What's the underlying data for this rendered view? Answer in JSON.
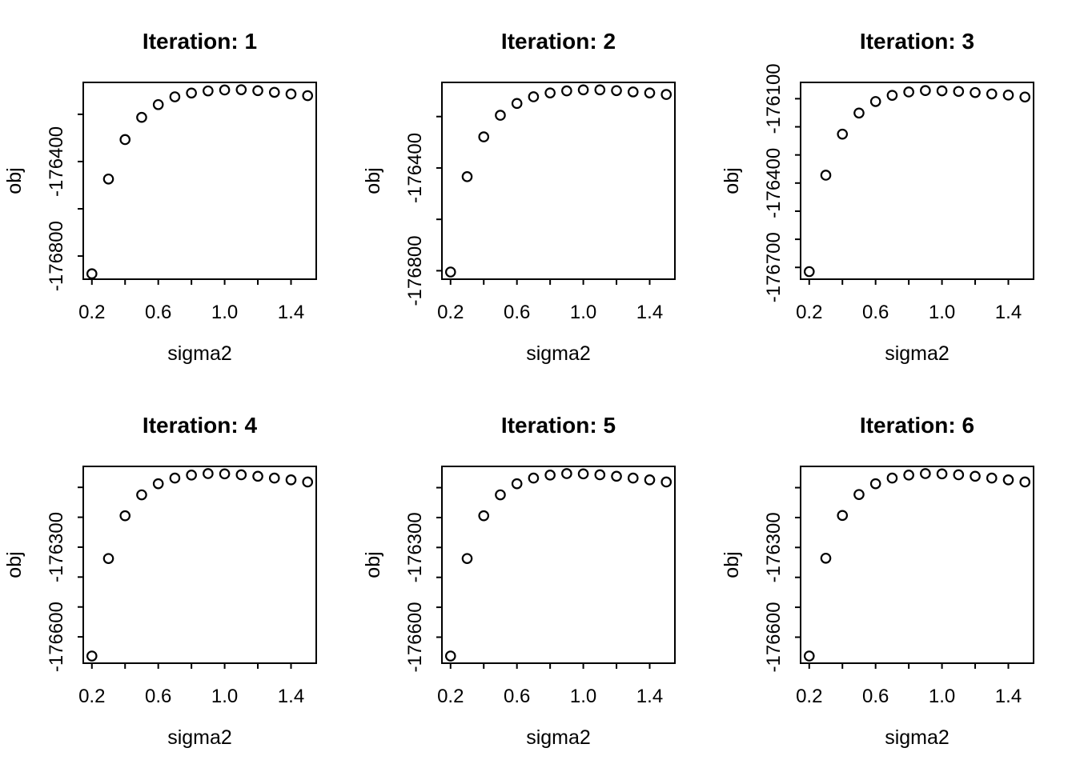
{
  "figure": {
    "background": "#ffffff",
    "foreground": "#000000",
    "layout": "2x3 grid of scatter panels"
  },
  "chart_data": [
    {
      "type": "scatter",
      "title": "Iteration: 1",
      "xlabel": "sigma2",
      "ylabel": "obj",
      "marker": "open-circle",
      "point_color": "#000000",
      "grid": false,
      "legend": null,
      "x": [
        0.2,
        0.3,
        0.4,
        0.5,
        0.6,
        0.7,
        0.8,
        0.9,
        1.0,
        1.1,
        1.2,
        1.3,
        1.4,
        1.5
      ],
      "y": [
        -176875,
        -176474,
        -176307,
        -176213,
        -176159,
        -176126,
        -176110,
        -176101,
        -176097,
        -176096,
        -176100,
        -176107,
        -176114,
        -176121
      ],
      "xlim": [
        0.148,
        1.552
      ],
      "ylim": [
        -176898,
        -176065
      ],
      "x_ticks": [
        0.2,
        0.4,
        0.6,
        0.8,
        1.0,
        1.2,
        1.4
      ],
      "x_tick_labels": [
        "0.2",
        "",
        "0.6",
        "",
        "1.0",
        "",
        "1.4"
      ],
      "y_ticks": [
        -176200,
        -176400,
        -176600,
        -176800
      ],
      "y_tick_labels": [
        "",
        "-176400",
        "",
        "-176800"
      ]
    },
    {
      "type": "scatter",
      "title": "Iteration: 2",
      "xlabel": "sigma2",
      "ylabel": "obj",
      "marker": "open-circle",
      "point_color": "#000000",
      "grid": false,
      "legend": null,
      "x": [
        0.2,
        0.3,
        0.4,
        0.5,
        0.6,
        0.7,
        0.8,
        0.9,
        1.0,
        1.1,
        1.2,
        1.3,
        1.4,
        1.5
      ],
      "y": [
        -176805,
        -176434,
        -176279,
        -176195,
        -176149,
        -176123,
        -176108,
        -176100,
        -176096,
        -176096,
        -176099,
        -176104,
        -176108,
        -176114
      ],
      "xlim": [
        0.148,
        1.552
      ],
      "ylim": [
        -176833,
        -176067
      ],
      "x_ticks": [
        0.2,
        0.4,
        0.6,
        0.8,
        1.0,
        1.2,
        1.4
      ],
      "x_tick_labels": [
        "0.2",
        "",
        "0.6",
        "",
        "1.0",
        "",
        "1.4"
      ],
      "y_ticks": [
        -176200,
        -176400,
        -176600,
        -176800
      ],
      "y_tick_labels": [
        "",
        "-176400",
        "",
        "-176800"
      ]
    },
    {
      "type": "scatter",
      "title": "Iteration: 3",
      "xlabel": "sigma2",
      "ylabel": "obj",
      "marker": "open-circle",
      "point_color": "#000000",
      "grid": false,
      "legend": null,
      "x": [
        0.2,
        0.3,
        0.4,
        0.5,
        0.6,
        0.7,
        0.8,
        0.9,
        1.0,
        1.1,
        1.2,
        1.3,
        1.4,
        1.5
      ],
      "y": [
        -176715,
        -176372,
        -176226,
        -176151,
        -176110,
        -176088,
        -176076,
        -176071,
        -176072,
        -176074,
        -176078,
        -176083,
        -176087,
        -176094
      ],
      "xlim": [
        0.148,
        1.552
      ],
      "ylim": [
        -176742,
        -176042
      ],
      "x_ticks": [
        0.2,
        0.4,
        0.6,
        0.8,
        1.0,
        1.2,
        1.4
      ],
      "x_tick_labels": [
        "0.2",
        "",
        "0.6",
        "",
        "1.0",
        "",
        "1.4"
      ],
      "y_ticks": [
        -176100,
        -176200,
        -176300,
        -176400,
        -176500,
        -176600,
        -176700
      ],
      "y_tick_labels": [
        "-176100",
        "",
        "",
        "-176400",
        "",
        "",
        "-176700"
      ]
    },
    {
      "type": "scatter",
      "title": "Iteration: 4",
      "xlabel": "sigma2",
      "ylabel": "obj",
      "marker": "open-circle",
      "point_color": "#000000",
      "grid": false,
      "legend": null,
      "x": [
        0.2,
        0.3,
        0.4,
        0.5,
        0.6,
        0.7,
        0.8,
        0.9,
        1.0,
        1.1,
        1.2,
        1.3,
        1.4,
        1.5
      ],
      "y": [
        -176664,
        -176338,
        -176195,
        -176125,
        -176088,
        -176069,
        -176059,
        -176054,
        -176055,
        -176058,
        -176063,
        -176069,
        -176075,
        -176082
      ],
      "xlim": [
        0.148,
        1.552
      ],
      "ylim": [
        -176688,
        -176030
      ],
      "x_ticks": [
        0.2,
        0.4,
        0.6,
        0.8,
        1.0,
        1.2,
        1.4
      ],
      "x_tick_labels": [
        "0.2",
        "",
        "0.6",
        "",
        "1.0",
        "",
        "1.4"
      ],
      "y_ticks": [
        -176100,
        -176200,
        -176300,
        -176400,
        -176500,
        -176600
      ],
      "y_tick_labels": [
        "",
        "",
        "-176300",
        "",
        "",
        "-176600"
      ]
    },
    {
      "type": "scatter",
      "title": "Iteration: 5",
      "xlabel": "sigma2",
      "ylabel": "obj",
      "marker": "open-circle",
      "point_color": "#000000",
      "grid": false,
      "legend": null,
      "x": [
        0.2,
        0.3,
        0.4,
        0.5,
        0.6,
        0.7,
        0.8,
        0.9,
        1.0,
        1.1,
        1.2,
        1.3,
        1.4,
        1.5
      ],
      "y": [
        -176663,
        -176337,
        -176194,
        -176124,
        -176087,
        -176068,
        -176058,
        -176053,
        -176054,
        -176057,
        -176062,
        -176068,
        -176074,
        -176081
      ],
      "xlim": [
        0.148,
        1.552
      ],
      "ylim": [
        -176687,
        -176029
      ],
      "x_ticks": [
        0.2,
        0.4,
        0.6,
        0.8,
        1.0,
        1.2,
        1.4
      ],
      "x_tick_labels": [
        "0.2",
        "",
        "0.6",
        "",
        "1.0",
        "",
        "1.4"
      ],
      "y_ticks": [
        -176100,
        -176200,
        -176300,
        -176400,
        -176500,
        -176600
      ],
      "y_tick_labels": [
        "",
        "",
        "-176300",
        "",
        "",
        "-176600"
      ]
    },
    {
      "type": "scatter",
      "title": "Iteration: 6",
      "xlabel": "sigma2",
      "ylabel": "obj",
      "marker": "open-circle",
      "point_color": "#000000",
      "grid": false,
      "legend": null,
      "x": [
        0.2,
        0.3,
        0.4,
        0.5,
        0.6,
        0.7,
        0.8,
        0.9,
        1.0,
        1.1,
        1.2,
        1.3,
        1.4,
        1.5
      ],
      "y": [
        -176663,
        -176336,
        -176193,
        -176123,
        -176087,
        -176068,
        -176058,
        -176053,
        -176054,
        -176057,
        -176062,
        -176068,
        -176074,
        -176081
      ],
      "xlim": [
        0.148,
        1.552
      ],
      "ylim": [
        -176687,
        -176029
      ],
      "x_ticks": [
        0.2,
        0.4,
        0.6,
        0.8,
        1.0,
        1.2,
        1.4
      ],
      "x_tick_labels": [
        "0.2",
        "",
        "0.6",
        "",
        "1.0",
        "",
        "1.4"
      ],
      "y_ticks": [
        -176100,
        -176200,
        -176300,
        -176400,
        -176500,
        -176600
      ],
      "y_tick_labels": [
        "",
        "",
        "-176300",
        "",
        "",
        "-176600"
      ]
    }
  ]
}
